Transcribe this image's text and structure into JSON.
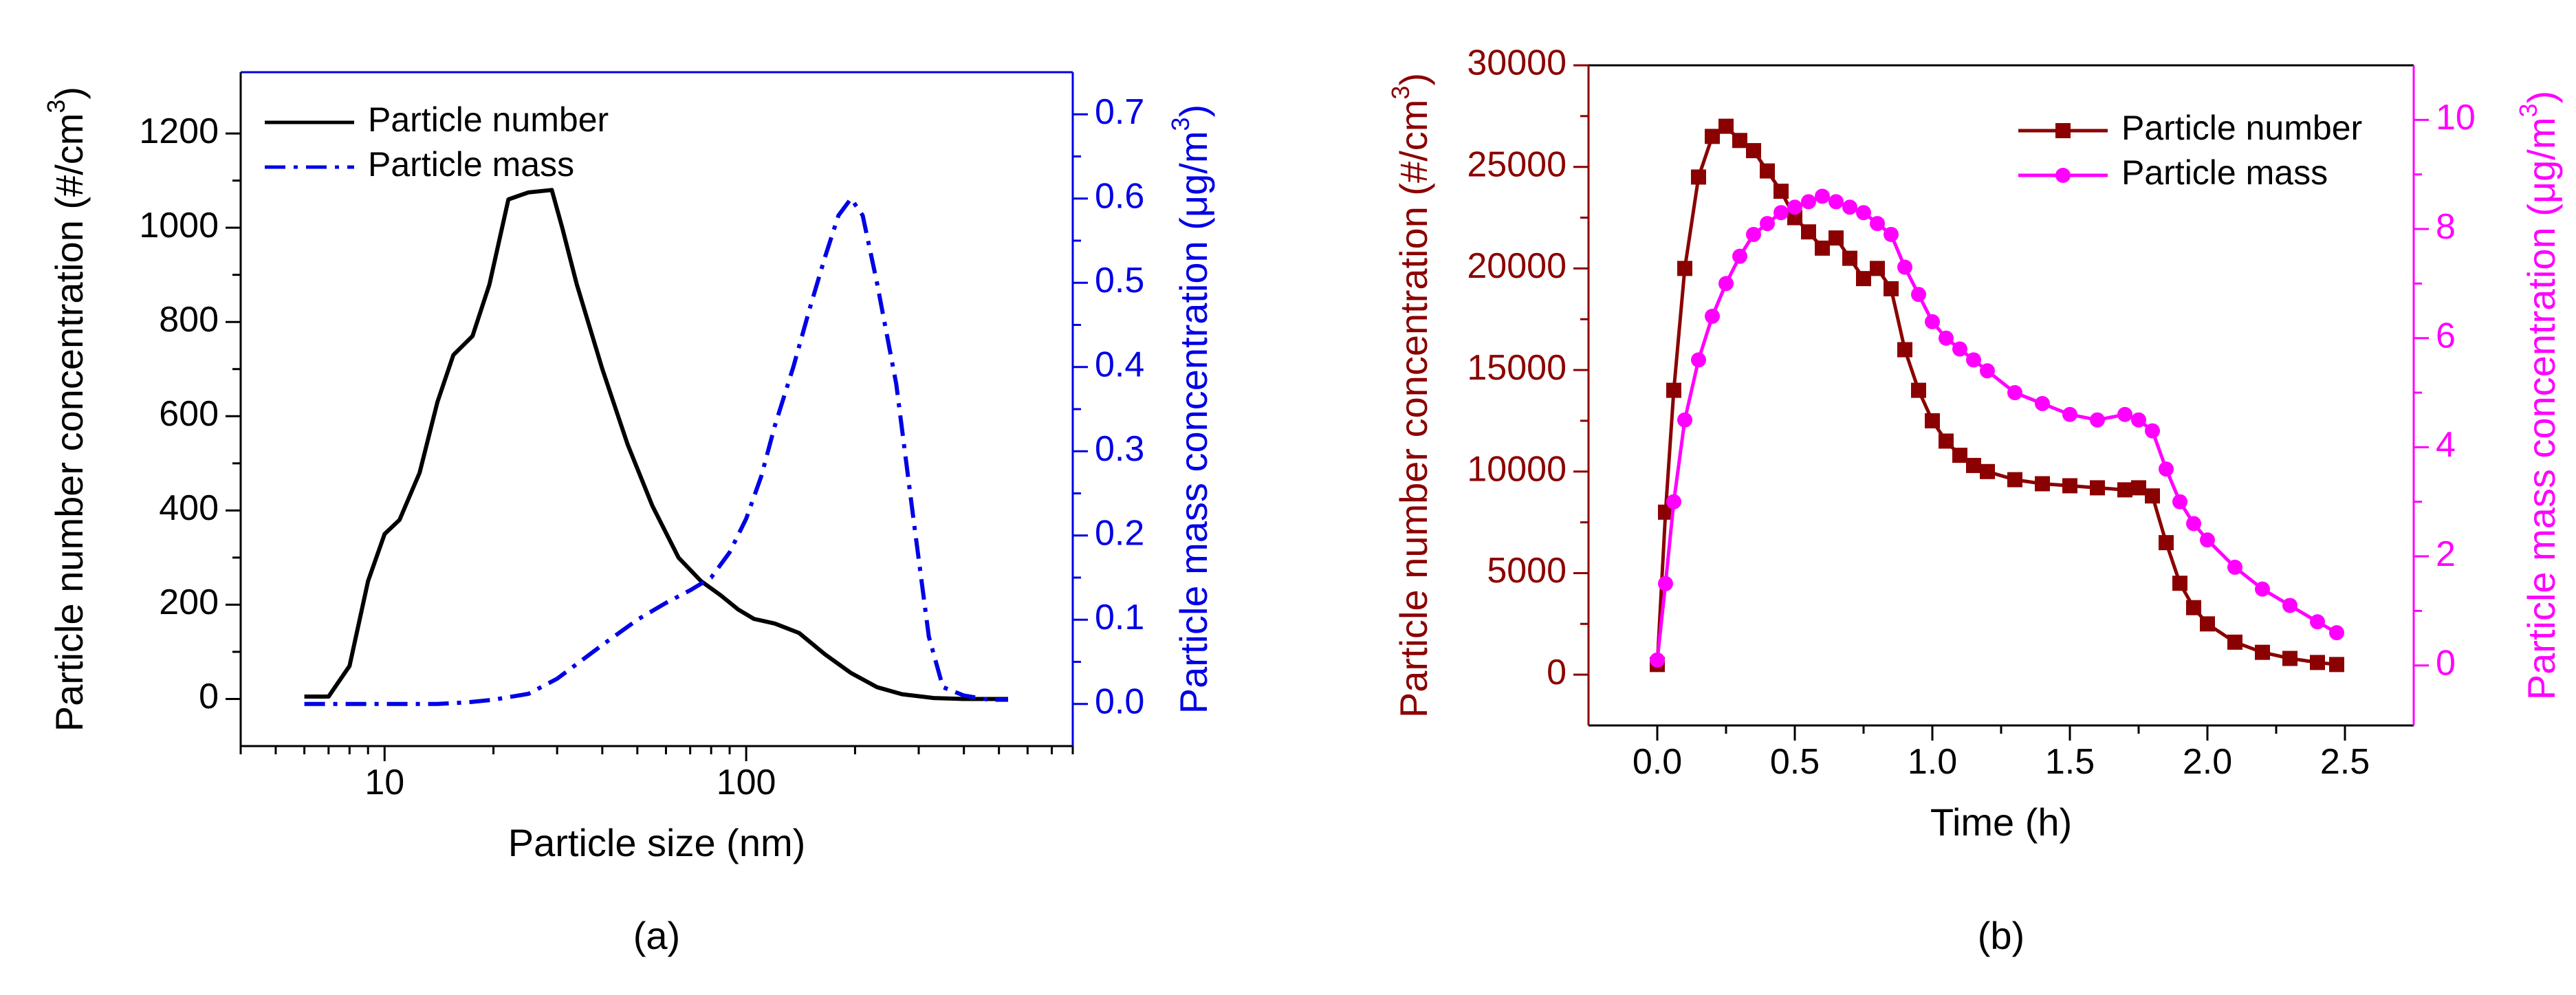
{
  "colors": {
    "number_a": "#000000",
    "mass_a": "#0000e6",
    "number_b": "#8b0000",
    "mass_b": "#ff00ff",
    "axis": "#000000"
  },
  "chart_data": [
    {
      "id": "a",
      "type": "line",
      "caption": "(a)",
      "xlabel": "Particle size (nm)",
      "xscale": "log",
      "xlim": [
        4,
        800
      ],
      "xticks": [
        10,
        100
      ],
      "xtick_labels": [
        "10",
        "100"
      ],
      "ylabel_left_main": "Particle number concentration (#/cm",
      "ylabel_left_sup": "3",
      "ylabel_left_end": ")",
      "ylim_left": [
        -100,
        1330
      ],
      "yticks_left": [
        0,
        200,
        400,
        600,
        800,
        1000,
        1200
      ],
      "ylabel_right_main": "Particle mass concentration (μg/m",
      "ylabel_right_sup": "3",
      "ylabel_right_end": ")",
      "ylim_right": [
        -0.05,
        0.75
      ],
      "yticks_right": [
        0.0,
        0.1,
        0.2,
        0.3,
        0.4,
        0.5,
        0.6,
        0.7
      ],
      "ytick_labels_right": [
        "0.0",
        "0.1",
        "0.2",
        "0.3",
        "0.4",
        "0.5",
        "0.6",
        "0.7"
      ],
      "legend_position": "top-left",
      "series": [
        {
          "name": "Particle number",
          "axis": "left",
          "style": "solid",
          "x": [
            6,
            7,
            8,
            9,
            10,
            11,
            12.5,
            14,
            15.5,
            17.5,
            19.5,
            22,
            25,
            29,
            31,
            34,
            40,
            47,
            55,
            65,
            75,
            85,
            95,
            105,
            120,
            140,
            165,
            195,
            230,
            270,
            330,
            400,
            470,
            530
          ],
          "y": [
            5,
            5,
            70,
            250,
            350,
            380,
            480,
            630,
            730,
            770,
            880,
            1060,
            1075,
            1080,
            1000,
            880,
            700,
            540,
            410,
            300,
            250,
            220,
            190,
            170,
            160,
            140,
            95,
            55,
            25,
            10,
            2,
            0,
            0,
            0
          ]
        },
        {
          "name": "Particle mass",
          "axis": "right",
          "style": "dashdot",
          "x": [
            6,
            7,
            8,
            10,
            12,
            14,
            17,
            20,
            25,
            30,
            40,
            50,
            60,
            70,
            80,
            90,
            100,
            110,
            120,
            135,
            150,
            165,
            180,
            195,
            210,
            230,
            260,
            290,
            320,
            350,
            400,
            470,
            530
          ],
          "y": [
            0,
            0,
            0,
            0,
            0,
            0,
            0.002,
            0.005,
            0.012,
            0.03,
            0.07,
            0.1,
            0.12,
            0.135,
            0.15,
            0.18,
            0.22,
            0.27,
            0.33,
            0.4,
            0.47,
            0.53,
            0.58,
            0.6,
            0.58,
            0.5,
            0.38,
            0.22,
            0.08,
            0.02,
            0.01,
            0.005,
            0.005
          ]
        }
      ]
    },
    {
      "id": "b",
      "type": "scatter",
      "caption": "(b)",
      "xlabel": "Time (h)",
      "xlim": [
        -0.25,
        2.75
      ],
      "xticks": [
        0.0,
        0.5,
        1.0,
        1.5,
        2.0,
        2.5
      ],
      "xtick_labels": [
        "0.0",
        "0.5",
        "1.0",
        "1.5",
        "2.0",
        "2.5"
      ],
      "ylabel_left_main": "Particle number concentration (#/cm",
      "ylabel_left_sup": "3",
      "ylabel_left_end": ")",
      "ylim_left": [
        -2500,
        30000
      ],
      "yticks_left": [
        0,
        5000,
        10000,
        15000,
        20000,
        25000,
        30000
      ],
      "ylabel_right_main": "Particle mass concentration (μg/m",
      "ylabel_right_sup": "3",
      "ylabel_right_end": ")",
      "ylim_right": [
        -1.1,
        11
      ],
      "yticks_right": [
        0,
        2,
        4,
        6,
        8,
        10
      ],
      "ytick_labels_right": [
        "0",
        "2",
        "4",
        "6",
        "8",
        "10"
      ],
      "legend_position": "top-right",
      "series": [
        {
          "name": "Particle number",
          "axis": "left",
          "marker": "square",
          "x": [
            0.0,
            0.03,
            0.06,
            0.1,
            0.15,
            0.2,
            0.25,
            0.3,
            0.35,
            0.4,
            0.45,
            0.5,
            0.55,
            0.6,
            0.65,
            0.7,
            0.75,
            0.8,
            0.85,
            0.9,
            0.95,
            1.0,
            1.05,
            1.1,
            1.15,
            1.2,
            1.3,
            1.4,
            1.5,
            1.6,
            1.7,
            1.75,
            1.8,
            1.85,
            1.9,
            1.95,
            2.0,
            2.1,
            2.2,
            2.3,
            2.4,
            2.47
          ],
          "y": [
            500,
            8000,
            14000,
            20000,
            24500,
            26500,
            27000,
            26300,
            25800,
            24800,
            23800,
            22500,
            21800,
            21000,
            21500,
            20500,
            19500,
            20000,
            19000,
            16000,
            14000,
            12500,
            11500,
            10800,
            10300,
            10000,
            9600,
            9400,
            9300,
            9200,
            9100,
            9200,
            8800,
            6500,
            4500,
            3300,
            2500,
            1600,
            1100,
            800,
            600,
            500
          ]
        },
        {
          "name": "Particle mass",
          "axis": "right",
          "marker": "circle",
          "x": [
            0.0,
            0.03,
            0.06,
            0.1,
            0.15,
            0.2,
            0.25,
            0.3,
            0.35,
            0.4,
            0.45,
            0.5,
            0.55,
            0.6,
            0.65,
            0.7,
            0.75,
            0.8,
            0.85,
            0.9,
            0.95,
            1.0,
            1.05,
            1.1,
            1.15,
            1.2,
            1.3,
            1.4,
            1.5,
            1.6,
            1.7,
            1.75,
            1.8,
            1.85,
            1.9,
            1.95,
            2.0,
            2.1,
            2.2,
            2.3,
            2.4,
            2.47
          ],
          "y": [
            0.1,
            1.5,
            3.0,
            4.5,
            5.6,
            6.4,
            7.0,
            7.5,
            7.9,
            8.1,
            8.3,
            8.4,
            8.5,
            8.6,
            8.5,
            8.4,
            8.3,
            8.1,
            7.9,
            7.3,
            6.8,
            6.3,
            6.0,
            5.8,
            5.6,
            5.4,
            5.0,
            4.8,
            4.6,
            4.5,
            4.6,
            4.5,
            4.3,
            3.6,
            3.0,
            2.6,
            2.3,
            1.8,
            1.4,
            1.1,
            0.8,
            0.6
          ]
        }
      ]
    }
  ]
}
